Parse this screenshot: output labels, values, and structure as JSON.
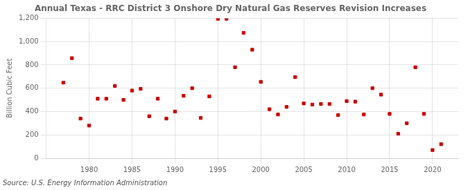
{
  "chart_data": {
    "type": "scatter",
    "title": "Annual Texas - RRC District 3 Onshore Dry Natural Gas Reserves Revision Increases",
    "ylabel": "Billion Cubic Feet",
    "source": "Source: U.S. Energy Information Administration",
    "x": [
      1977,
      1978,
      1979,
      1980,
      1981,
      1982,
      1983,
      1984,
      1985,
      1986,
      1987,
      1988,
      1989,
      1990,
      1991,
      1992,
      1993,
      1994,
      1995,
      1996,
      1997,
      1998,
      1999,
      2000,
      2001,
      2002,
      2003,
      2004,
      2005,
      2006,
      2007,
      2008,
      2009,
      2010,
      2011,
      2012,
      2013,
      2014,
      2015,
      2016,
      2017,
      2018,
      2019,
      2020,
      2021
    ],
    "values": [
      648,
      858,
      340,
      280,
      510,
      510,
      620,
      500,
      580,
      595,
      360,
      510,
      340,
      400,
      535,
      600,
      345,
      530,
      1195,
      1195,
      780,
      1075,
      930,
      655,
      420,
      375,
      440,
      695,
      470,
      460,
      465,
      465,
      370,
      490,
      485,
      375,
      600,
      545,
      380,
      210,
      300,
      780,
      380,
      70,
      120
    ],
    "color": "#cc0000",
    "marker": "square",
    "xlim": [
      1975,
      2023
    ],
    "xticks": [
      1980,
      1985,
      1990,
      1995,
      2000,
      2005,
      2010,
      2015,
      2020
    ],
    "ylim": [
      0,
      1200
    ],
    "yticks": [
      0,
      200,
      400,
      600,
      800,
      {
        "value": 1000,
        "label": "1,000"
      },
      {
        "value": 1200,
        "label": "1,200"
      }
    ],
    "grid": true
  }
}
